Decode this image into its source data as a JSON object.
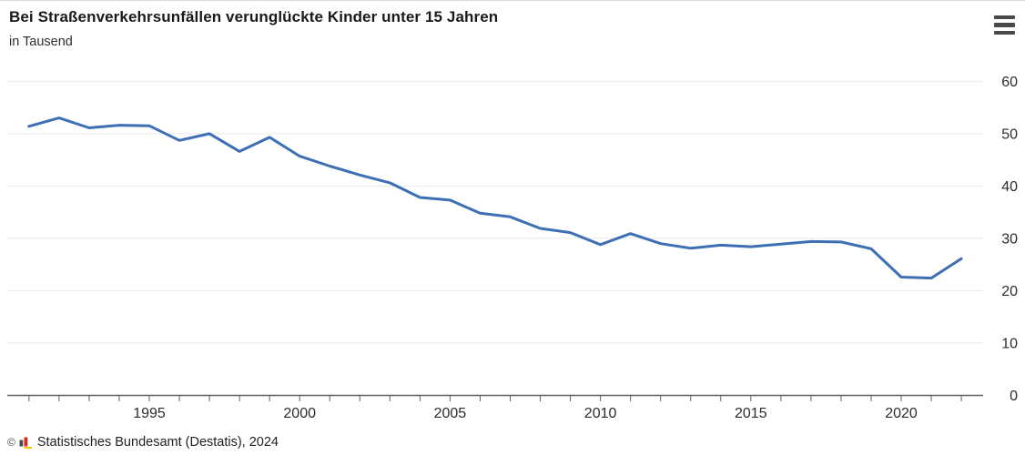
{
  "header": {
    "title": "Bei Straßenverkehrsunfällen verunglückte Kinder unter 15 Jahren",
    "subtitle": "in Tausend"
  },
  "footer": {
    "copyright": "©",
    "text": "Statistisches Bundesamt (Destatis), 2024"
  },
  "chart_data": {
    "type": "line",
    "title": "Bei Straßenverkehrsunfällen verunglückte Kinder unter 15 Jahren",
    "ylabel": "in Tausend",
    "xlabel": "",
    "x_range": [
      1991,
      2022
    ],
    "x": [
      1991,
      1992,
      1993,
      1994,
      1995,
      1996,
      1997,
      1998,
      1999,
      2000,
      2001,
      2002,
      2003,
      2004,
      2005,
      2006,
      2007,
      2008,
      2009,
      2010,
      2011,
      2012,
      2013,
      2014,
      2015,
      2016,
      2017,
      2018,
      2019,
      2020,
      2021,
      2022
    ],
    "values": [
      51.4,
      53.0,
      51.1,
      51.6,
      51.5,
      48.7,
      50.0,
      46.6,
      49.3,
      45.7,
      43.8,
      42.1,
      40.6,
      37.8,
      37.3,
      34.8,
      34.1,
      31.9,
      31.1,
      28.8,
      30.9,
      29.0,
      28.1,
      28.7,
      28.4,
      28.9,
      29.4,
      29.3,
      28.0,
      22.6,
      22.4,
      26.1
    ],
    "x_tick_labels": [
      "1995",
      "2000",
      "2005",
      "2010",
      "2015",
      "2020"
    ],
    "y_ticks": [
      0,
      10,
      20,
      30,
      40,
      50,
      60
    ],
    "ylim": [
      0,
      60
    ],
    "grid": true,
    "legend": "none",
    "line_color": "#3e6fb4",
    "grid_color": "#eaeaea",
    "axis_color": "#5f5f5f",
    "label_color": "#2b2b2b"
  }
}
